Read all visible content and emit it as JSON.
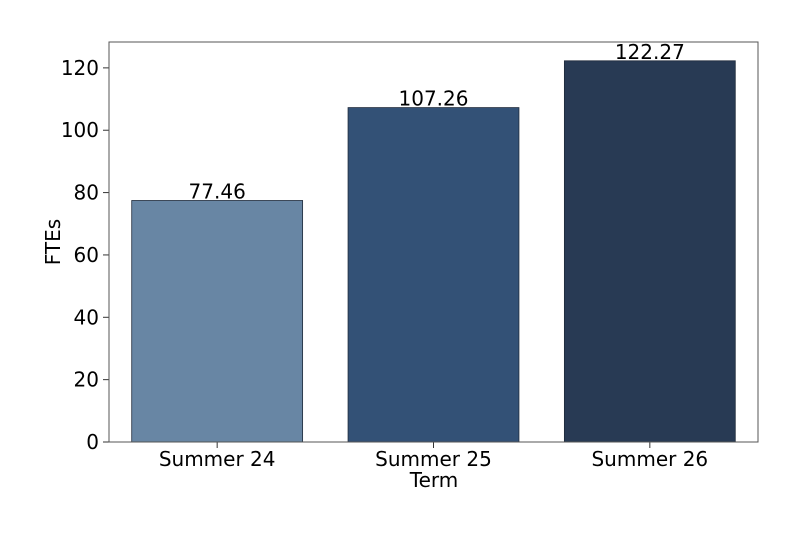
{
  "chart_data": {
    "type": "bar",
    "x_label": "Term",
    "y_label": "FTEs",
    "categories": [
      "Summer 24",
      "Summer 25",
      "Summer 26"
    ],
    "values": [
      77.46,
      107.26,
      122.27
    ],
    "colors": [
      "#6886a4",
      "#335176",
      "#283a54"
    ],
    "ylim": [
      0,
      128.3
    ],
    "yticks": [
      0,
      20,
      40,
      60,
      80,
      100,
      120
    ],
    "value_labels_shown": true
  }
}
